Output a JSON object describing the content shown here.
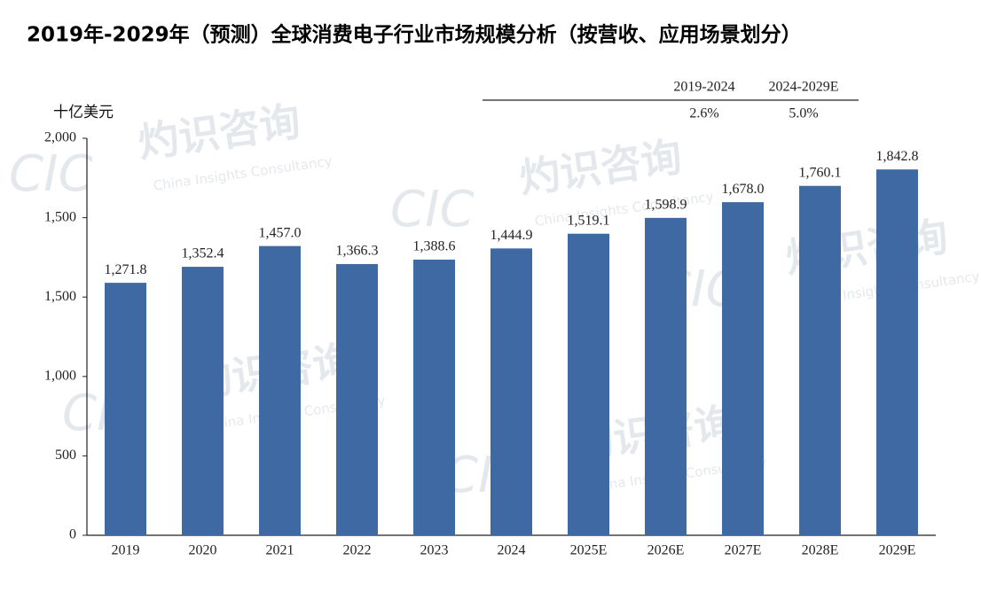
{
  "chart_data": {
    "type": "bar",
    "title": "2019年-2029年（预测）全球消费电子行业市场规模分析（按营收、应用场景划分）",
    "y_label": "十亿美元",
    "categories": [
      "2019",
      "2020",
      "2021",
      "2022",
      "2023",
      "2024",
      "2025E",
      "2026E",
      "2027E",
      "2028E",
      "2029E"
    ],
    "values": [
      1271.8,
      1352.4,
      1457.0,
      1366.3,
      1388.6,
      1444.9,
      1519.1,
      1598.9,
      1678.0,
      1760.1,
      1842.8
    ],
    "value_labels": [
      "1,271.8",
      "1,352.4",
      "1,457.0",
      "1,366.3",
      "1,388.6",
      "1,444.9",
      "1,519.1",
      "1,598.9",
      "1,678.0",
      "1,760.1",
      "1,842.8"
    ],
    "color": "#3e69a3",
    "ylim": [
      0,
      2000
    ],
    "yticks": [
      0,
      500,
      {
        "value": 1000,
        "label": "1,000"
      },
      {
        "value": 1500,
        "label": "1,500"
      },
      {
        "value": 1500,
        "label": "1,500"
      },
      {
        "value": 2000,
        "label": "2,000"
      }
    ],
    "grid": false,
    "cagr": {
      "periods": [
        "2019-2024",
        "2024-2029E"
      ],
      "values": [
        2.6,
        5.0
      ],
      "value_labels": [
        "2.6%",
        "5.0%"
      ]
    },
    "watermark": {
      "name": "灼识咨询",
      "english": "China Insights Consultancy",
      "logo": "CIC"
    }
  }
}
